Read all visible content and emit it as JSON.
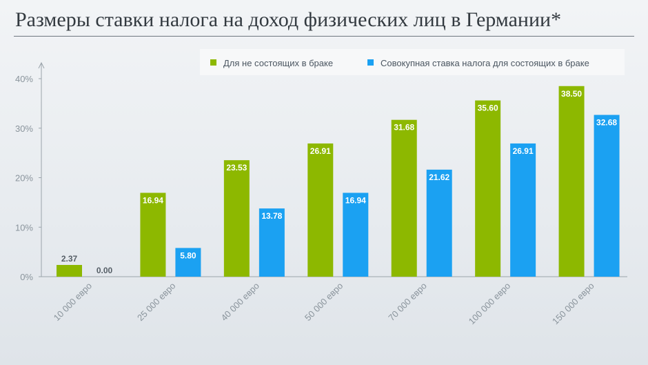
{
  "header": {
    "title": "Размеры ставки налога на доход физических лиц в Германии*"
  },
  "colors": {
    "single": "#8db800",
    "married": "#1ba1f2",
    "axis": "#9aa3aa",
    "grid": "#d8dde2"
  },
  "chart_data": {
    "type": "bar",
    "title": "Размеры ставки налога на доход физических лиц в Германии*",
    "categories": [
      "10 000 евро",
      "25 000 евро",
      "40 000 евро",
      "50 000 евро",
      "70 000 евро",
      "100 000 евро",
      "150 000 евро"
    ],
    "series": [
      {
        "name": "Для не состоящих в браке",
        "values": [
          2.37,
          16.94,
          23.53,
          26.91,
          31.68,
          35.6,
          38.5
        ],
        "labels": [
          "2.37",
          "16.94",
          "23.53",
          "26.91",
          "31.68",
          "35.60",
          "38.50"
        ]
      },
      {
        "name": "Совокупная ставка налога для состоящих в браке",
        "values": [
          0.0,
          5.8,
          13.78,
          16.94,
          21.62,
          26.91,
          32.68
        ],
        "labels": [
          "0.00",
          "5.80",
          "13.78",
          "16.94",
          "21.62",
          "26.91",
          "32.68"
        ]
      }
    ],
    "ylim": [
      0,
      40
    ],
    "yticks": [
      "0%",
      "10%",
      "20%",
      "30%",
      "40%"
    ],
    "ytick_values": [
      0,
      10,
      20,
      30,
      40
    ],
    "xlabel": "",
    "ylabel": "",
    "legend_position": "top-right",
    "grid": false
  }
}
